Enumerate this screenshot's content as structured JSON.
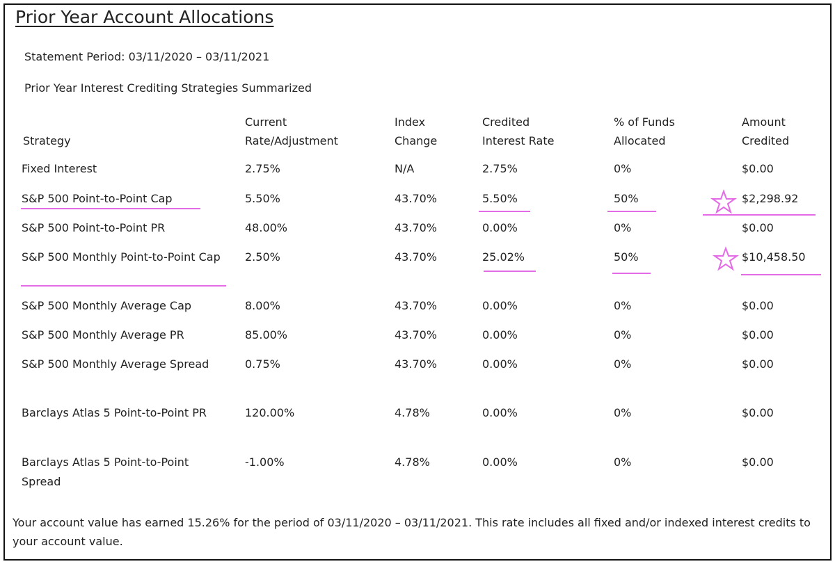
{
  "header": {
    "title": "Prior Year Account Allocations",
    "statement_period": "Statement Period: 03/11/2020 – 03/11/2021",
    "subtitle": "Prior Year Interest Crediting Strategies Summarized"
  },
  "table": {
    "columns": [
      "Strategy",
      "Current Rate/Adjustment",
      "Index Change",
      "Credited Interest Rate",
      "% of Funds Allocated",
      "Amount Credited"
    ],
    "rows": [
      [
        "Fixed Interest",
        "2.75%",
        "N/A",
        "2.75%",
        "0%",
        "$0.00"
      ],
      [
        "S&P 500 Point-to-Point Cap",
        "5.50%",
        "43.70%",
        "5.50%",
        "50%",
        "$2,298.92"
      ],
      [
        "S&P 500 Point-to-Point PR",
        "48.00%",
        "43.70%",
        "0.00%",
        "0%",
        "$0.00"
      ],
      [
        "S&P 500 Monthly Point-to-Point Cap",
        "2.50%",
        "43.70%",
        "25.02%",
        "50%",
        "$10,458.50"
      ],
      [
        "S&P 500 Monthly Average Cap",
        "8.00%",
        "43.70%",
        "0.00%",
        "0%",
        "$0.00"
      ],
      [
        "S&P 500 Monthly Average PR",
        "85.00%",
        "43.70%",
        "0.00%",
        "0%",
        "$0.00"
      ],
      [
        "S&P 500 Monthly Average Spread",
        "0.75%",
        "43.70%",
        "0.00%",
        "0%",
        "$0.00"
      ],
      [
        "Barclays Atlas 5 Point-to-Point PR",
        "120.00%",
        "4.78%",
        "0.00%",
        "0%",
        "$0.00"
      ],
      [
        "Barclays Atlas 5 Point-to-Point Spread",
        "-1.00%",
        "4.78%",
        "0.00%",
        "0%",
        "$0.00"
      ]
    ]
  },
  "footer": {
    "text": "Your account value has earned 15.26% for the period of 03/11/2020 – 03/11/2021. This rate includes all fixed and/or indexed interest credits to your account value."
  }
}
